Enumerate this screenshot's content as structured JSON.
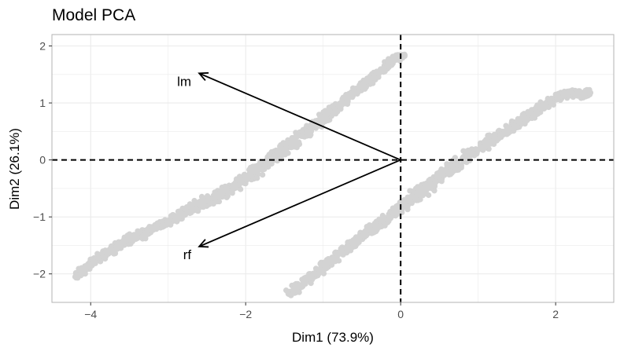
{
  "chart_data": {
    "type": "scatter",
    "title": "Model PCA",
    "xlabel": "Dim1 (73.9%)",
    "ylabel": "Dim2 (26.1%)",
    "xlim": [
      -4.5,
      2.75
    ],
    "ylim": [
      -2.5,
      2.2
    ],
    "x_major_ticks": [
      -4,
      -2,
      0,
      2
    ],
    "x_tick_labels": [
      "−4",
      "−2",
      "0",
      "2"
    ],
    "y_major_ticks": [
      -2,
      -1,
      0,
      1,
      2
    ],
    "y_tick_labels": [
      "−2",
      "−1",
      "0",
      "1",
      "2"
    ],
    "grid": true,
    "reference_lines": {
      "x": 0,
      "y": 0,
      "style": "dashed"
    },
    "point_color": "#d3d3d3",
    "series": [
      {
        "points": [
          [
            -4.2,
            -2.05
          ],
          [
            -3.9,
            -1.72
          ],
          [
            -3.5,
            -1.4
          ],
          [
            -3.0,
            -1.08
          ],
          [
            -2.5,
            -0.72
          ],
          [
            -2.0,
            -0.34
          ],
          [
            -1.6,
            0.1
          ],
          [
            -1.2,
            0.5
          ],
          [
            -0.8,
            0.95
          ],
          [
            -0.4,
            1.4
          ],
          [
            -0.1,
            1.75
          ],
          [
            0.05,
            1.85
          ]
        ]
      },
      {
        "points": [
          [
            -1.45,
            -2.35
          ],
          [
            -1.1,
            -2.0
          ],
          [
            -0.7,
            -1.55
          ],
          [
            -0.3,
            -1.15
          ],
          [
            0.1,
            -0.72
          ],
          [
            0.5,
            -0.3
          ],
          [
            0.9,
            0.1
          ],
          [
            1.3,
            0.45
          ],
          [
            1.7,
            0.82
          ],
          [
            2.1,
            1.15
          ],
          [
            2.45,
            1.18
          ]
        ]
      }
    ],
    "vectors": [
      {
        "label": "lm",
        "x": -2.6,
        "y": 1.52
      },
      {
        "label": "rf",
        "x": -2.6,
        "y": -1.52
      }
    ],
    "axis_color": "#4d4d4d",
    "grid_color": "#ebebeb",
    "vector_color": "#000000"
  }
}
